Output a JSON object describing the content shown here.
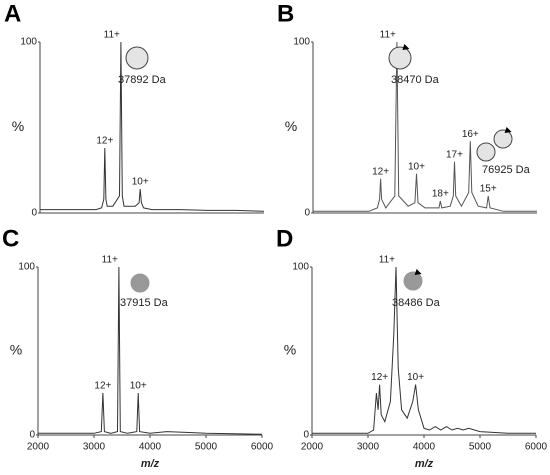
{
  "chart_data": [
    {
      "type": "line",
      "panel_label": "A",
      "color": "#333333",
      "xlim": [
        2000,
        6000
      ],
      "ylim": [
        0,
        100
      ],
      "yticks": [
        0,
        100
      ],
      "ylabel": "%",
      "x": [
        2000,
        2500,
        3000,
        3100,
        3140,
        3158,
        3176,
        3200,
        3300,
        3420,
        3445,
        3470,
        3500,
        3700,
        3770,
        3790,
        3810,
        3850,
        4000,
        4500,
        5000,
        5500,
        6000
      ],
      "y": [
        2,
        2,
        2,
        3,
        8,
        38,
        8,
        4,
        4,
        10,
        100,
        10,
        4,
        4,
        6,
        14,
        6,
        3,
        2,
        2,
        1.5,
        1.5,
        1
      ],
      "peak_labels": [
        {
          "label": "12+",
          "x": 3158,
          "y": 38
        },
        {
          "label": "11+",
          "x": 3445,
          "y": 100
        },
        {
          "label": "10+",
          "x": 3790,
          "y": 14
        }
      ],
      "mass_labels": [
        "37892 Da"
      ]
    },
    {
      "type": "line",
      "panel_label": "B",
      "color": "#555555",
      "xlim": [
        2000,
        6000
      ],
      "ylim": [
        0,
        100
      ],
      "yticks": [
        0,
        100
      ],
      "ylabel": "%",
      "x": [
        2000,
        2500,
        3000,
        3150,
        3190,
        3207,
        3225,
        3300,
        3460,
        3498,
        3530,
        3700,
        3820,
        3848,
        3875,
        4000,
        4250,
        4274,
        4300,
        4450,
        4505,
        4526,
        4548,
        4650,
        4780,
        4809,
        4835,
        4950,
        5100,
        5129,
        5160,
        5400,
        6000
      ],
      "y": [
        1,
        1,
        1,
        3,
        8,
        20,
        8,
        3,
        10,
        100,
        10,
        4,
        6,
        23,
        6,
        3,
        3,
        7,
        3,
        4,
        10,
        30,
        10,
        4,
        12,
        42,
        12,
        4,
        3,
        10,
        3,
        1,
        1
      ],
      "peak_labels": [
        {
          "label": "12+",
          "x": 3207,
          "y": 20
        },
        {
          "label": "11+",
          "x": 3498,
          "y": 100
        },
        {
          "label": "10+",
          "x": 3848,
          "y": 23
        },
        {
          "label": "18+",
          "x": 4274,
          "y": 7
        },
        {
          "label": "17+",
          "x": 4526,
          "y": 30
        },
        {
          "label": "16+",
          "x": 4809,
          "y": 42
        },
        {
          "label": "15+",
          "x": 5129,
          "y": 10
        }
      ],
      "mass_labels": [
        "38470 Da",
        "76925 Da"
      ]
    },
    {
      "type": "line",
      "panel_label": "C",
      "color": "#333333",
      "xlim": [
        2000,
        6000
      ],
      "ylim": [
        0,
        100
      ],
      "yticks": [
        0,
        100
      ],
      "ylabel": "%",
      "xticks": [
        2000,
        3000,
        4000,
        5000,
        6000
      ],
      "xlabel": "m/z",
      "x": [
        2000,
        2500,
        3000,
        3130,
        3159,
        3185,
        3300,
        3420,
        3445,
        3470,
        3600,
        3765,
        3790,
        3815,
        4000,
        4300,
        4700,
        5000,
        6000
      ],
      "y": [
        1,
        1,
        1,
        2,
        25,
        2,
        1,
        2,
        100,
        2,
        1,
        2,
        25,
        2,
        1,
        2,
        1.5,
        1,
        0.5
      ],
      "peak_labels": [
        {
          "label": "12+",
          "x": 3159,
          "y": 25
        },
        {
          "label": "11+",
          "x": 3445,
          "y": 100
        },
        {
          "label": "10+",
          "x": 3790,
          "y": 25
        }
      ],
      "mass_labels": [
        "37915 Da"
      ]
    },
    {
      "type": "line",
      "panel_label": "D",
      "color": "#333333",
      "xlim": [
        2000,
        6000
      ],
      "ylim": [
        0,
        100
      ],
      "yticks": [
        0,
        100
      ],
      "ylabel": "%",
      "xticks": [
        2000,
        3000,
        4000,
        5000,
        6000
      ],
      "xlabel": "m/z",
      "x": [
        2000,
        2500,
        3000,
        3100,
        3150,
        3180,
        3208,
        3235,
        3300,
        3400,
        3460,
        3500,
        3540,
        3600,
        3700,
        3800,
        3850,
        3900,
        4000,
        4100,
        4200,
        4300,
        4400,
        4500,
        4600,
        4700,
        4800,
        5000,
        5500,
        6000
      ],
      "y": [
        1,
        1,
        1,
        3,
        25,
        15,
        30,
        12,
        8,
        20,
        60,
        100,
        40,
        15,
        10,
        20,
        30,
        15,
        4,
        3,
        5,
        3,
        5,
        3,
        4,
        3,
        4,
        2,
        1,
        1
      ],
      "peak_labels": [
        {
          "label": "12+",
          "x": 3208,
          "y": 30
        },
        {
          "label": "11+",
          "x": 3500,
          "y": 100
        },
        {
          "label": "10+",
          "x": 3850,
          "y": 30
        }
      ],
      "mass_labels": [
        "38486 Da"
      ]
    }
  ]
}
